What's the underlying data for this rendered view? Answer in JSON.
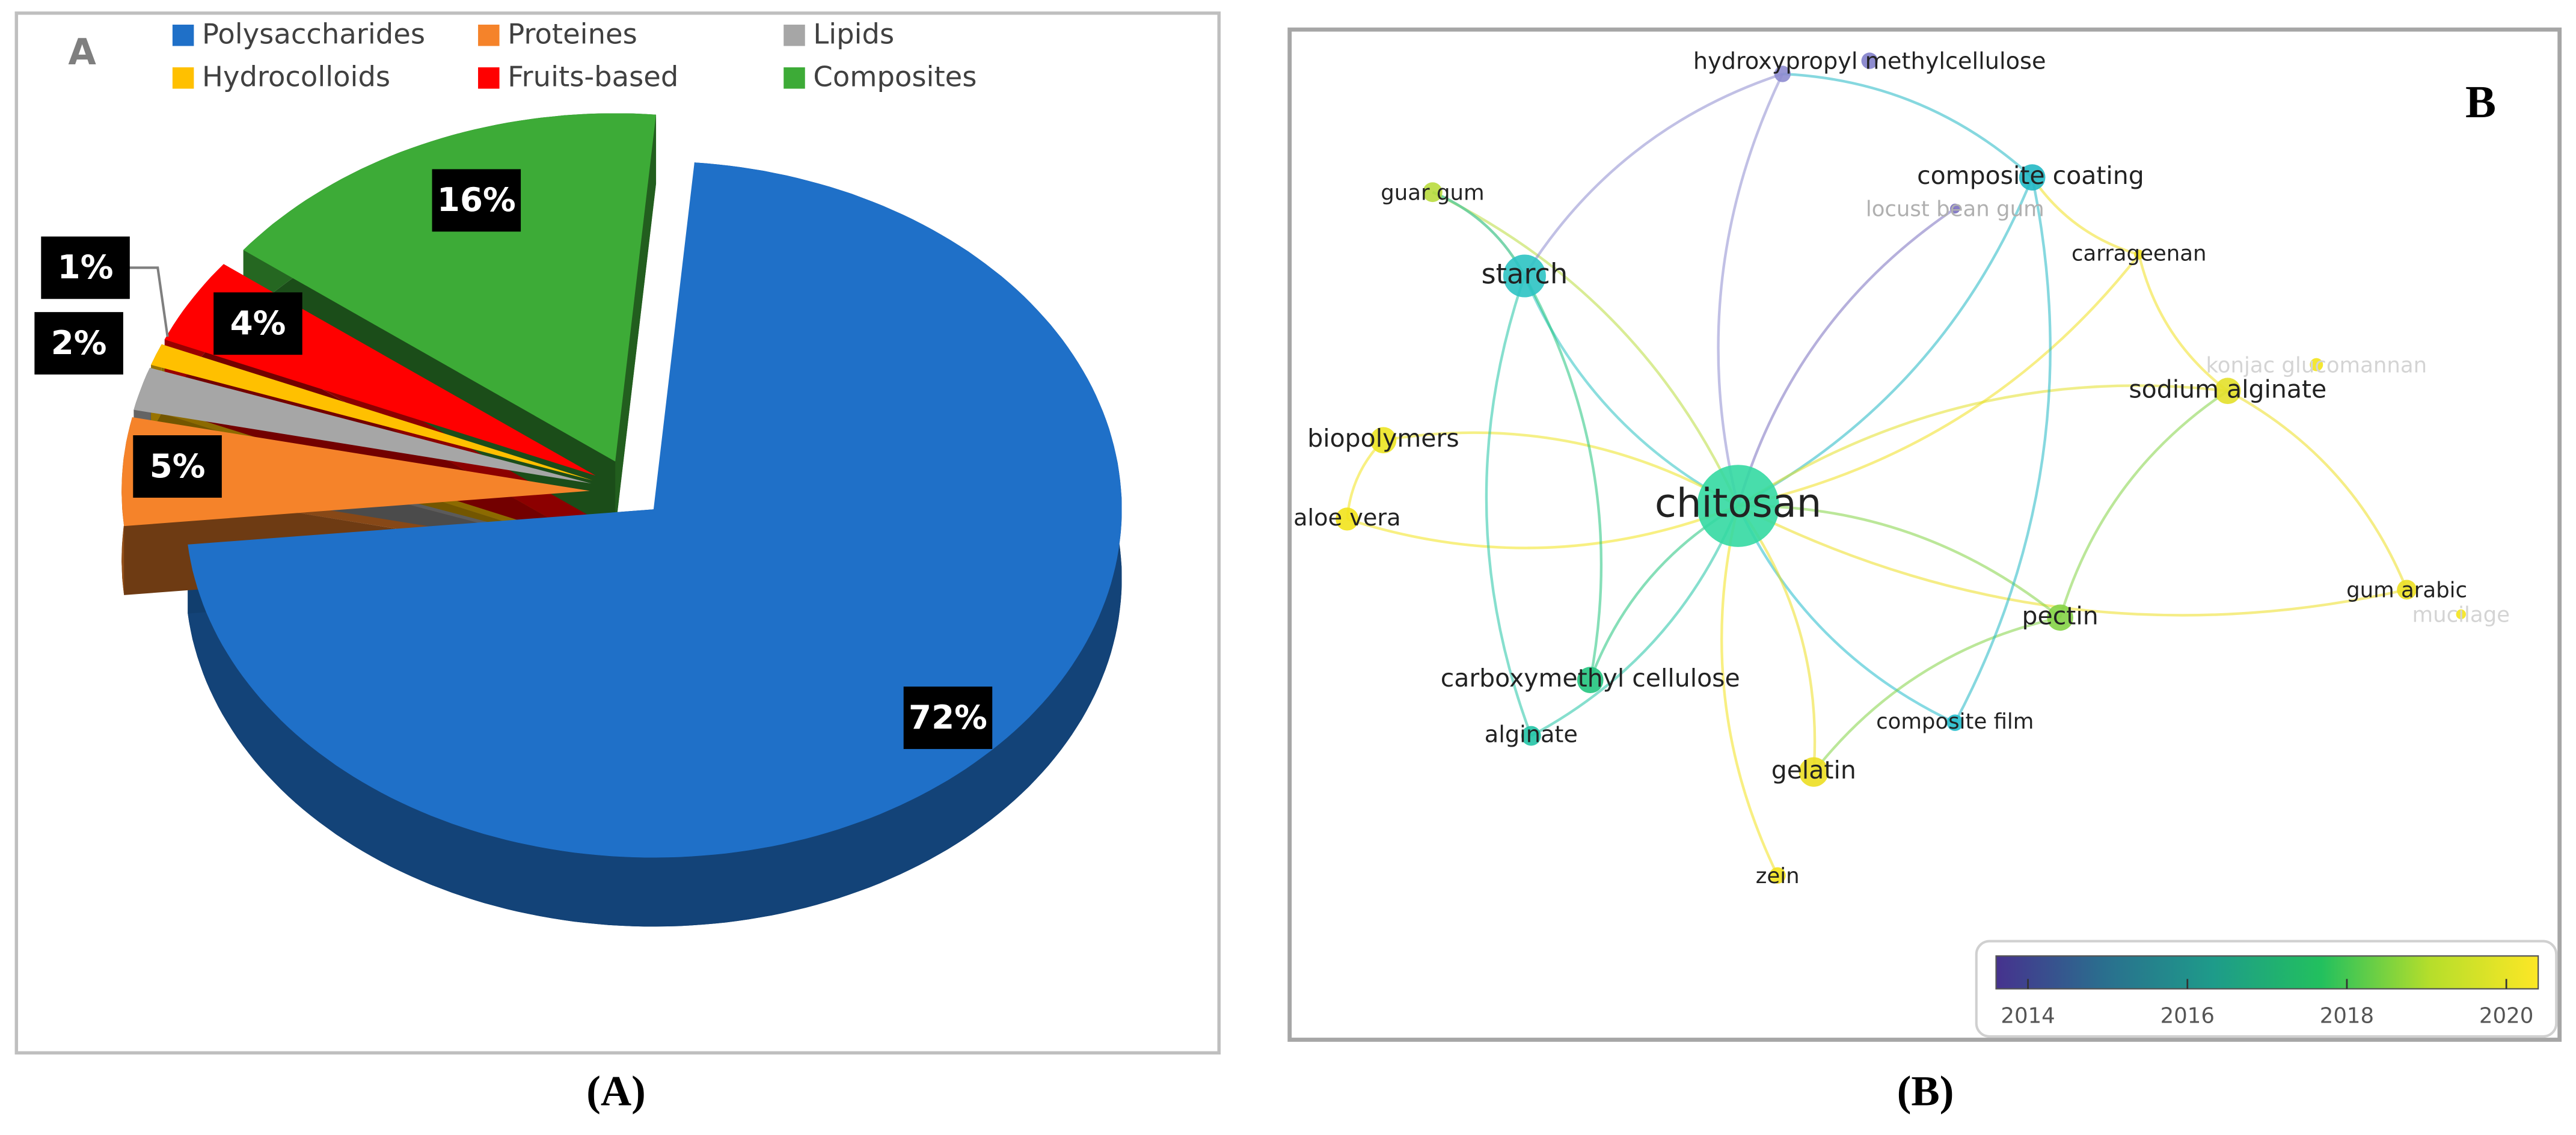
{
  "chart_data": [
    {
      "type": "pie",
      "panel_letter": "A",
      "caption": "(A)",
      "categories": [
        "Polysaccharides",
        "Proteines",
        "Lipids",
        "Hydrocolloids",
        "Fruits-based",
        "Composites"
      ],
      "values": [
        72,
        5,
        2,
        1,
        4,
        16
      ],
      "value_labels": [
        "72%",
        "5%",
        "2%",
        "1%",
        "4%",
        "16%"
      ],
      "colors": [
        "#1f70c8",
        "#f5832a",
        "#a6a6a6",
        "#ffc000",
        "#ff0000",
        "#3dab37"
      ]
    }
  ],
  "network": {
    "panel_letter": "B",
    "caption": "(B)",
    "nodes": [
      {
        "label": "hydroxypropyl methylcellulose",
        "color": "#8e8cd0"
      },
      {
        "label": "composite coating",
        "color": "#22b8c4"
      },
      {
        "label": "locust bean gum",
        "color": "#7a6fc0"
      },
      {
        "label": "guar gum",
        "color": "#b9dc3e"
      },
      {
        "label": "starch",
        "color": "#2cc3c3"
      },
      {
        "label": "carrageenan",
        "color": "#f0e020"
      },
      {
        "label": "konjac glucomannan",
        "color": "#f3e41c"
      },
      {
        "label": "sodium alginate",
        "color": "#e3e02a"
      },
      {
        "label": "biopolymers",
        "color": "#ece422"
      },
      {
        "label": "aloe vera",
        "color": "#f2e31c"
      },
      {
        "label": "chitosan",
        "color": "#34d9a2"
      },
      {
        "label": "gum arabic",
        "color": "#ecdf22"
      },
      {
        "label": "mucilage",
        "color": "#f4e41c"
      },
      {
        "label": "pectin",
        "color": "#84d346"
      },
      {
        "label": "carboxymethyl cellulose",
        "color": "#22c47e"
      },
      {
        "label": "alginate",
        "color": "#22c4a6"
      },
      {
        "label": "composite film",
        "color": "#22bccc"
      },
      {
        "label": "gelatin",
        "color": "#ecde22"
      },
      {
        "label": "zein",
        "color": "#f2e21c"
      }
    ],
    "colorbar": {
      "lim": [
        2013.6,
        2020.4
      ],
      "ticks": [
        2014,
        2016,
        2018,
        2020
      ],
      "colors": [
        "#46328e",
        "#2a6f8e",
        "#1e9b8a",
        "#22c05e",
        "#b5de2b",
        "#fde725"
      ]
    }
  }
}
